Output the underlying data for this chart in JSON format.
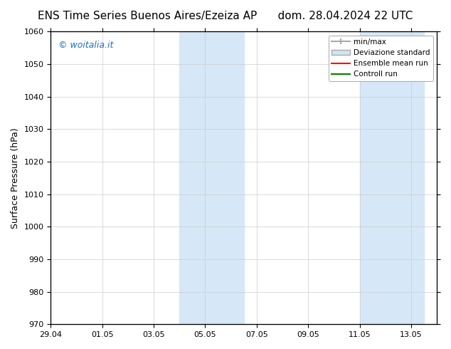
{
  "title_left": "ENS Time Series Buenos Aires/Ezeiza AP",
  "title_right": "dom. 28.04.2024 22 UTC",
  "ylabel": "Surface Pressure (hPa)",
  "ylim": [
    970,
    1060
  ],
  "yticks": [
    970,
    980,
    990,
    1000,
    1010,
    1020,
    1030,
    1040,
    1050,
    1060
  ],
  "xlim_start": "2024-04-29",
  "xlim_end": "2024-05-14",
  "xtick_labels": [
    "29.04",
    "01.05",
    "03.05",
    "05.05",
    "07.05",
    "09.05",
    "11.05",
    "13.05"
  ],
  "shaded_bands": [
    {
      "xstart": "2024-05-04",
      "xend": "2024-05-06"
    },
    {
      "xstart": "2024-05-11",
      "xend": "2024-05-12"
    },
    {
      "xstart": "2024-05-12",
      "xend": "2024-05-13.5"
    }
  ],
  "shade_color": "#d6e8f7",
  "watermark_text": "© woitalia.it",
  "watermark_color": "#1a6fc4",
  "legend_entries": [
    {
      "label": "min/max",
      "color": "#aaaaaa",
      "style": "minmax"
    },
    {
      "label": "Deviazione standard",
      "color": "#ccddee",
      "style": "std"
    },
    {
      "label": "Ensemble mean run",
      "color": "red",
      "style": "line"
    },
    {
      "label": "Controll run",
      "color": "green",
      "style": "line"
    }
  ],
  "background_color": "#ffffff",
  "grid_color": "#cccccc",
  "title_fontsize": 11,
  "tick_fontsize": 8,
  "ylabel_fontsize": 9
}
